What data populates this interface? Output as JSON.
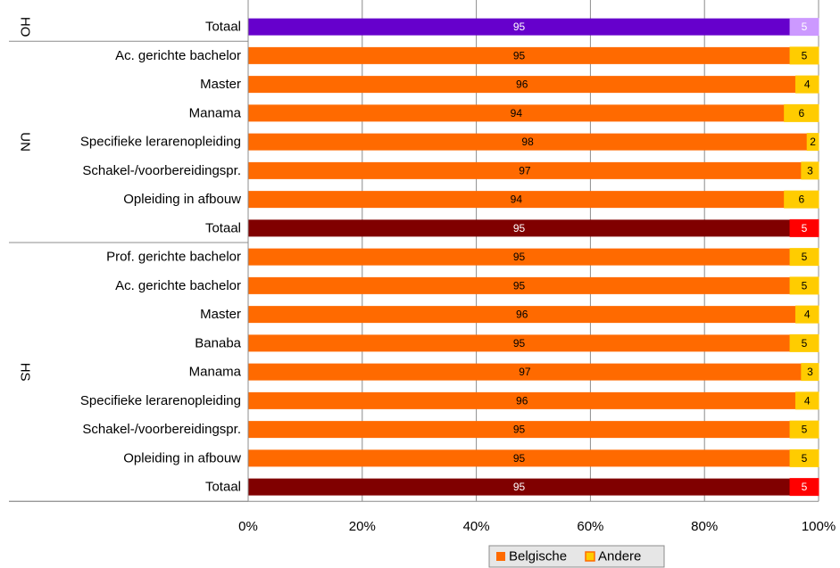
{
  "chart_data": {
    "type": "bar",
    "orientation": "horizontal",
    "stacked": "percent",
    "title": "",
    "xlim": [
      0,
      100
    ],
    "x_ticks": [
      "0%",
      "20%",
      "40%",
      "60%",
      "80%",
      "100%"
    ],
    "grid": true,
    "legend_position": "bottom",
    "groups": [
      {
        "name": "HO",
        "rows": [
          {
            "label": "Totaal",
            "values": [
              95,
              5
            ],
            "style": "ho"
          }
        ]
      },
      {
        "name": "UN",
        "rows": [
          {
            "label": "Ac. gerichte bachelor",
            "values": [
              95,
              5
            ],
            "style": "default"
          },
          {
            "label": "Master",
            "values": [
              96,
              4
            ],
            "style": "default"
          },
          {
            "label": "Manama",
            "values": [
              94,
              6
            ],
            "style": "default"
          },
          {
            "label": "Specifieke lerarenopleiding",
            "values": [
              98,
              2
            ],
            "style": "default"
          },
          {
            "label": "Schakel-/voorbereidingspr.",
            "values": [
              97,
              3
            ],
            "style": "default"
          },
          {
            "label": "Opleiding in afbouw",
            "values": [
              94,
              6
            ],
            "style": "default"
          },
          {
            "label": "Totaal",
            "values": [
              95,
              5
            ],
            "style": "total"
          }
        ]
      },
      {
        "name": "HS",
        "rows": [
          {
            "label": "Prof. gerichte bachelor",
            "values": [
              95,
              5
            ],
            "style": "default"
          },
          {
            "label": "Ac. gerichte bachelor",
            "values": [
              95,
              5
            ],
            "style": "default"
          },
          {
            "label": "Master",
            "values": [
              96,
              4
            ],
            "style": "default"
          },
          {
            "label": "Banaba",
            "values": [
              95,
              5
            ],
            "style": "default"
          },
          {
            "label": "Manama",
            "values": [
              97,
              3
            ],
            "style": "default"
          },
          {
            "label": "Specifieke lerarenopleiding",
            "values": [
              96,
              4
            ],
            "style": "default"
          },
          {
            "label": "Schakel-/voorbereidingspr.",
            "values": [
              95,
              5
            ],
            "style": "default"
          },
          {
            "label": "Opleiding in afbouw",
            "values": [
              95,
              5
            ],
            "style": "default"
          },
          {
            "label": "Totaal",
            "values": [
              95,
              5
            ],
            "style": "total"
          }
        ]
      }
    ],
    "series": [
      {
        "name": "Belgische"
      },
      {
        "name": "Andere"
      }
    ],
    "colors": {
      "default": [
        "#FF6A00",
        "#FFCC00"
      ],
      "ho": [
        "#6600CC",
        "#CC99FF"
      ],
      "total": [
        "#800000",
        "#FF0000"
      ],
      "legend": [
        "#FF6A00",
        "#FFCC00"
      ]
    }
  }
}
